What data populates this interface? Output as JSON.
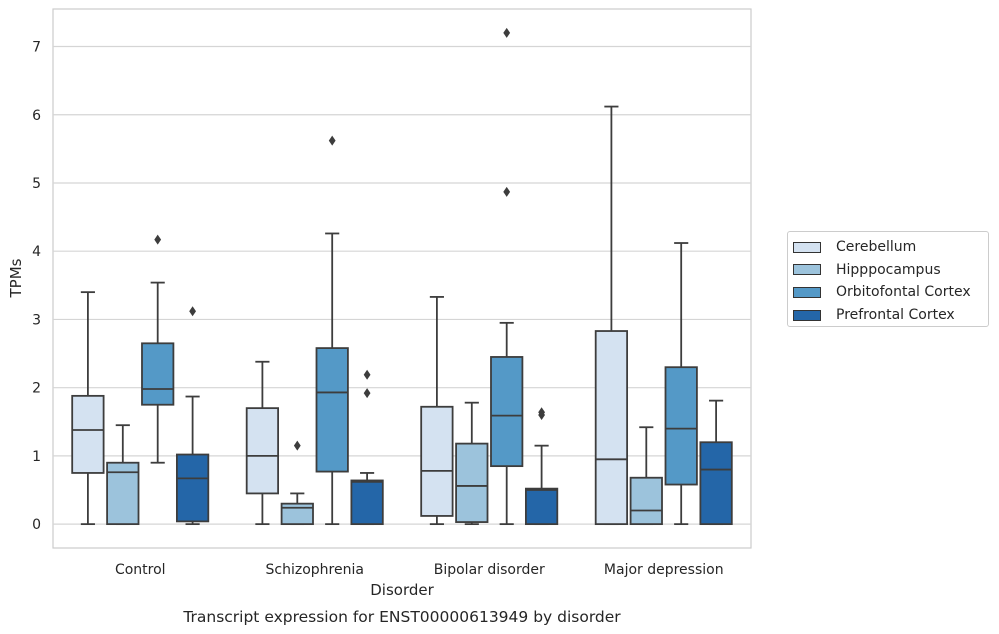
{
  "chart_data": {
    "type": "box",
    "title": "Transcript expression for ENST00000613949 by disorder",
    "xlabel": "Disorder",
    "ylabel": "TPMs",
    "ylim": [
      -0.35,
      7.55
    ],
    "yticks": [
      "0",
      "1",
      "2",
      "3",
      "4",
      "5",
      "6",
      "7"
    ],
    "grid": true,
    "legend_position": "right",
    "categories": [
      "Control",
      "Schizophrenia",
      "Bipolar disorder",
      "Major depression"
    ],
    "series": [
      {
        "name": "Cerebellum",
        "color": "#d4e2f1",
        "boxes": [
          {
            "whisker_low": 0,
            "q1": 0.75,
            "median": 1.38,
            "q3": 1.88,
            "whisker_high": 3.4,
            "outliers": []
          },
          {
            "whisker_low": 0,
            "q1": 0.45,
            "median": 1.0,
            "q3": 1.7,
            "whisker_high": 2.38,
            "outliers": []
          },
          {
            "whisker_low": 0,
            "q1": 0.12,
            "median": 0.78,
            "q3": 1.72,
            "whisker_high": 3.33,
            "outliers": []
          },
          {
            "whisker_low": 0,
            "q1": 0,
            "median": 0.95,
            "q3": 2.83,
            "whisker_high": 6.12,
            "outliers": []
          }
        ]
      },
      {
        "name": "Hipppocampus",
        "color": "#9cc3dc",
        "boxes": [
          {
            "whisker_low": 0,
            "q1": 0,
            "median": 0.76,
            "q3": 0.9,
            "whisker_high": 1.45,
            "outliers": []
          },
          {
            "whisker_low": 0,
            "q1": 0,
            "median": 0.24,
            "q3": 0.3,
            "whisker_high": 0.45,
            "outliers": [
              1.15
            ]
          },
          {
            "whisker_low": 0,
            "q1": 0.03,
            "median": 0.56,
            "q3": 1.18,
            "whisker_high": 1.78,
            "outliers": []
          },
          {
            "whisker_low": 0,
            "q1": 0,
            "median": 0.2,
            "q3": 0.68,
            "whisker_high": 1.42,
            "outliers": []
          }
        ]
      },
      {
        "name": "Orbitofontal Cortex",
        "color": "#5499c7",
        "boxes": [
          {
            "whisker_low": 0.9,
            "q1": 1.75,
            "median": 1.98,
            "q3": 2.65,
            "whisker_high": 3.54,
            "outliers": [
              4.17
            ]
          },
          {
            "whisker_low": 0,
            "q1": 0.77,
            "median": 1.93,
            "q3": 2.58,
            "whisker_high": 4.26,
            "outliers": [
              5.62
            ]
          },
          {
            "whisker_low": 0,
            "q1": 0.85,
            "median": 1.59,
            "q3": 2.45,
            "whisker_high": 2.95,
            "outliers": [
              4.87,
              7.2
            ]
          },
          {
            "whisker_low": 0,
            "q1": 0.58,
            "median": 1.4,
            "q3": 2.3,
            "whisker_high": 4.12,
            "outliers": []
          }
        ]
      },
      {
        "name": "Prefrontal Cortex",
        "color": "#2466a8",
        "boxes": [
          {
            "whisker_low": 0,
            "q1": 0.04,
            "median": 0.67,
            "q3": 1.02,
            "whisker_high": 1.87,
            "outliers": [
              3.12
            ]
          },
          {
            "whisker_low": 0,
            "q1": 0,
            "median": 0.62,
            "q3": 0.64,
            "whisker_high": 0.75,
            "outliers": [
              1.92,
              2.19
            ]
          },
          {
            "whisker_low": 0,
            "q1": 0,
            "median": 0.5,
            "q3": 0.52,
            "whisker_high": 1.15,
            "outliers": [
              1.6,
              1.64
            ]
          },
          {
            "whisker_low": 0,
            "q1": 0,
            "median": 0.8,
            "q3": 1.2,
            "whisker_high": 1.81,
            "outliers": []
          }
        ]
      }
    ]
  }
}
